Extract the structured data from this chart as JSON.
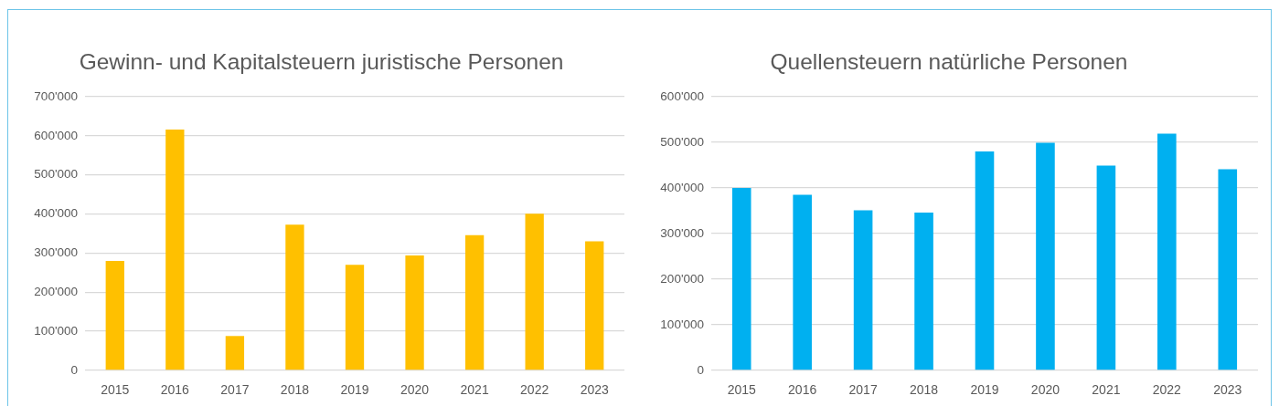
{
  "chart_data": [
    {
      "type": "bar",
      "title": "Gewinn- und Kapitalsteuern juristische Personen",
      "categories": [
        "2015",
        "2016",
        "2017",
        "2018",
        "2019",
        "2020",
        "2021",
        "2022",
        "2023"
      ],
      "values": [
        280000,
        616000,
        88000,
        373000,
        270000,
        294000,
        346000,
        401000,
        330000
      ],
      "color": "#ffc000",
      "ylim": [
        0,
        700000
      ],
      "yticks": [
        0,
        {
          "value": 100000,
          "label": "100'000"
        },
        {
          "value": 200000,
          "label": "200'000"
        },
        {
          "value": 300000,
          "label": "300'000"
        },
        {
          "value": 400000,
          "label": "400'000"
        },
        {
          "value": 500000,
          "label": "500'000"
        },
        {
          "value": 600000,
          "label": "600'000"
        },
        {
          "value": 700000,
          "label": "700'000"
        }
      ],
      "grid": "y"
    },
    {
      "type": "bar",
      "title": "Quellensteuern natürliche Personen",
      "categories": [
        "2015",
        "2016",
        "2017",
        "2018",
        "2019",
        "2020",
        "2021",
        "2022",
        "2023"
      ],
      "values": [
        400000,
        385000,
        351000,
        346000,
        480000,
        499000,
        449000,
        519000,
        441000
      ],
      "color": "#00b0f0",
      "ylim": [
        0,
        600000
      ],
      "yticks": [
        0,
        {
          "value": 100000,
          "label": "100'000"
        },
        {
          "value": 200000,
          "label": "200'000"
        },
        {
          "value": 300000,
          "label": "300'000"
        },
        {
          "value": 400000,
          "label": "400'000"
        },
        {
          "value": 500000,
          "label": "500'000"
        },
        {
          "value": 600000,
          "label": "600'000"
        }
      ],
      "grid": "y"
    }
  ]
}
